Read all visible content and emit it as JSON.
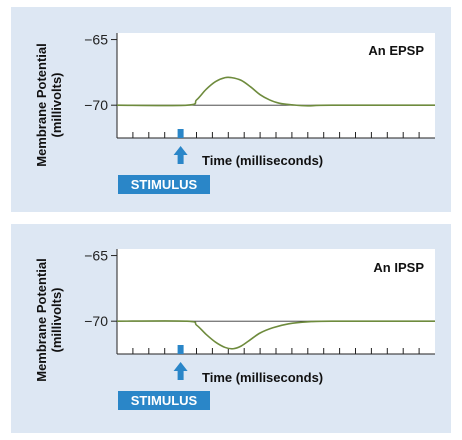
{
  "chart_data": [
    {
      "type": "line",
      "title": "An EPSP",
      "xlabel": "Time (milliseconds)",
      "ylabel": "Membrane Potential\n(millivolts)",
      "ylabel_line1": "Membrane Potential",
      "ylabel_line2": "(millivolts)",
      "yticks": [
        -65,
        -70
      ],
      "ylim": [
        -72.5,
        -64.5
      ],
      "xlim": [
        0,
        20
      ],
      "stimulus_label": "STIMULUS",
      "stimulus_time": 4,
      "baseline": -70,
      "series": [
        {
          "color": "#6e8b3d",
          "x": [
            0,
            4.4,
            5.0,
            5.6,
            6.2,
            6.8,
            7.2,
            7.8,
            8.4,
            9.0,
            9.6,
            10.2,
            11.0,
            12.0,
            13.5,
            20
          ],
          "y": [
            -70,
            -70,
            -69.6,
            -68.8,
            -68.2,
            -67.9,
            -67.9,
            -68.1,
            -68.6,
            -69.2,
            -69.6,
            -69.85,
            -69.97,
            -70.05,
            -70,
            -70
          ]
        }
      ]
    },
    {
      "type": "line",
      "title": "An IPSP",
      "xlabel": "Time (milliseconds)",
      "ylabel": "Membrane Potential\n(millivolts)",
      "ylabel_line1": "Membrane Potential",
      "ylabel_line2": "(millivolts)",
      "yticks": [
        -65,
        -70
      ],
      "ylim": [
        -72.5,
        -64.5
      ],
      "xlim": [
        0,
        20
      ],
      "stimulus_label": "STIMULUS",
      "stimulus_time": 4,
      "baseline": -70,
      "series": [
        {
          "color": "#6e8b3d",
          "x": [
            0,
            4.4,
            5.0,
            5.6,
            6.2,
            6.8,
            7.3,
            7.8,
            8.4,
            9.0,
            9.8,
            10.8,
            12.0,
            13.5,
            20
          ],
          "y": [
            -70,
            -70,
            -70.3,
            -71.0,
            -71.6,
            -72.0,
            -72.1,
            -71.9,
            -71.4,
            -70.9,
            -70.5,
            -70.2,
            -70.05,
            -70,
            -70
          ]
        }
      ]
    }
  ],
  "colors": {
    "panel_bg": "#dde7f3",
    "plot_bg": "#ffffff",
    "trace": "#6e8b3d",
    "stimulus": "#2a86c8",
    "axis": "#222222"
  }
}
